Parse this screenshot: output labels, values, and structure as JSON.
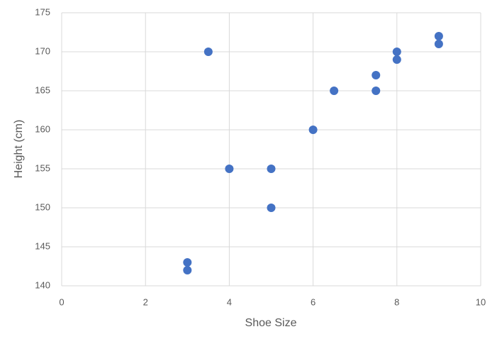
{
  "chart_data": {
    "type": "scatter",
    "x_label": "Shoe Size",
    "y_label": "Height (cm)",
    "series": [
      {
        "color": "#4472c4",
        "x": [
          3,
          3,
          3.5,
          4,
          5,
          5,
          6,
          6.5,
          7.5,
          7.5,
          8,
          8,
          9,
          9
        ],
        "values": [
          142,
          143,
          170,
          155,
          155,
          150,
          160,
          165,
          167,
          165,
          170,
          169,
          172,
          171
        ]
      }
    ],
    "xlim": [
      0,
      10
    ],
    "xticks": [
      0,
      2,
      4,
      6,
      8,
      10
    ],
    "ylim": [
      140,
      175
    ],
    "yticks": [
      140,
      145,
      150,
      155,
      160,
      165,
      170,
      175
    ],
    "grid": true
  }
}
